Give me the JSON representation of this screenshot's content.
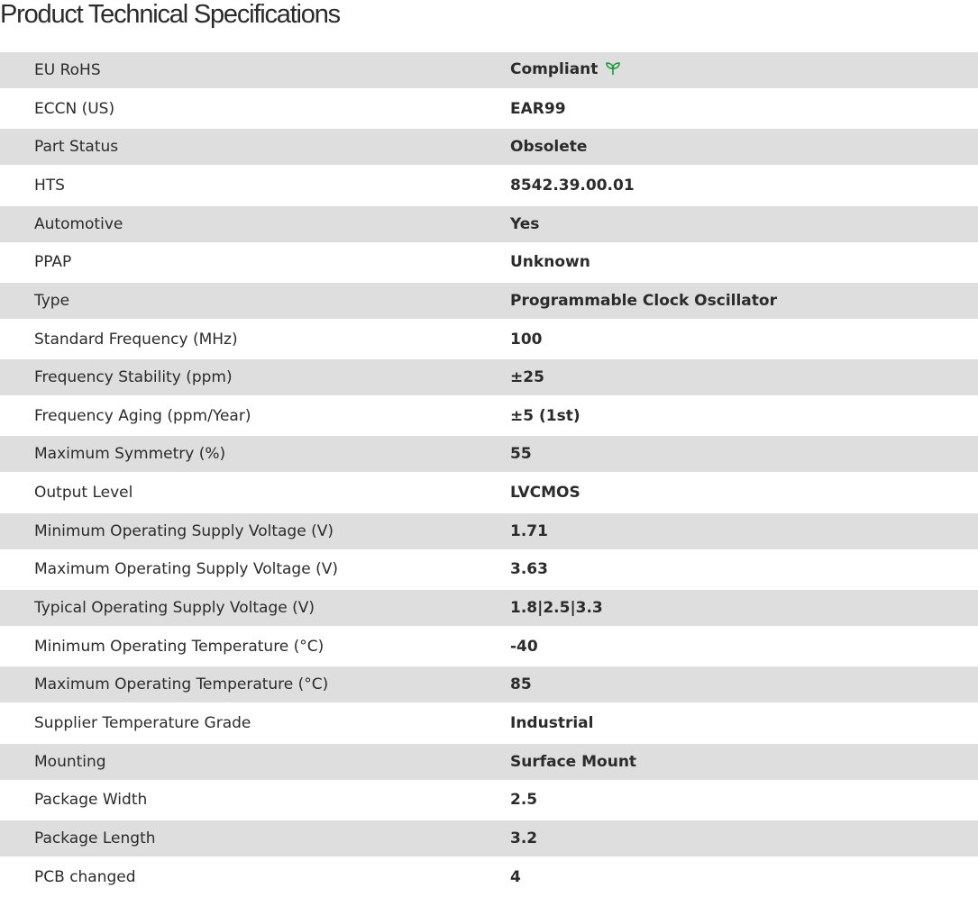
{
  "title": "Product Technical Specifications",
  "accent_color": "#1a9a3a",
  "rows": [
    {
      "label": "EU RoHS",
      "value": "Compliant",
      "icon": "leaf-icon"
    },
    {
      "label": "ECCN (US)",
      "value": "EAR99"
    },
    {
      "label": "Part Status",
      "value": "Obsolete"
    },
    {
      "label": "HTS",
      "value": "8542.39.00.01"
    },
    {
      "label": "Automotive",
      "value": "Yes"
    },
    {
      "label": "PPAP",
      "value": "Unknown"
    },
    {
      "label": "Type",
      "value": "Programmable Clock Oscillator"
    },
    {
      "label": "Standard Frequency (MHz)",
      "value": "100"
    },
    {
      "label": "Frequency Stability (ppm)",
      "value": "±25"
    },
    {
      "label": "Frequency Aging (ppm/Year)",
      "value": "±5 (1st)"
    },
    {
      "label": "Maximum Symmetry (%)",
      "value": "55"
    },
    {
      "label": "Output Level",
      "value": "LVCMOS"
    },
    {
      "label": "Minimum Operating Supply Voltage (V)",
      "value": "1.71"
    },
    {
      "label": "Maximum Operating Supply Voltage (V)",
      "value": "3.63"
    },
    {
      "label": "Typical Operating Supply Voltage (V)",
      "value": "1.8|2.5|3.3"
    },
    {
      "label": "Minimum Operating Temperature (°C)",
      "value": "-40"
    },
    {
      "label": "Maximum Operating Temperature (°C)",
      "value": "85"
    },
    {
      "label": "Supplier Temperature Grade",
      "value": "Industrial"
    },
    {
      "label": "Mounting",
      "value": "Surface Mount"
    },
    {
      "label": "Package Width",
      "value": "2.5"
    },
    {
      "label": "Package Length",
      "value": "3.2"
    },
    {
      "label": "PCB changed",
      "value": "4"
    }
  ]
}
